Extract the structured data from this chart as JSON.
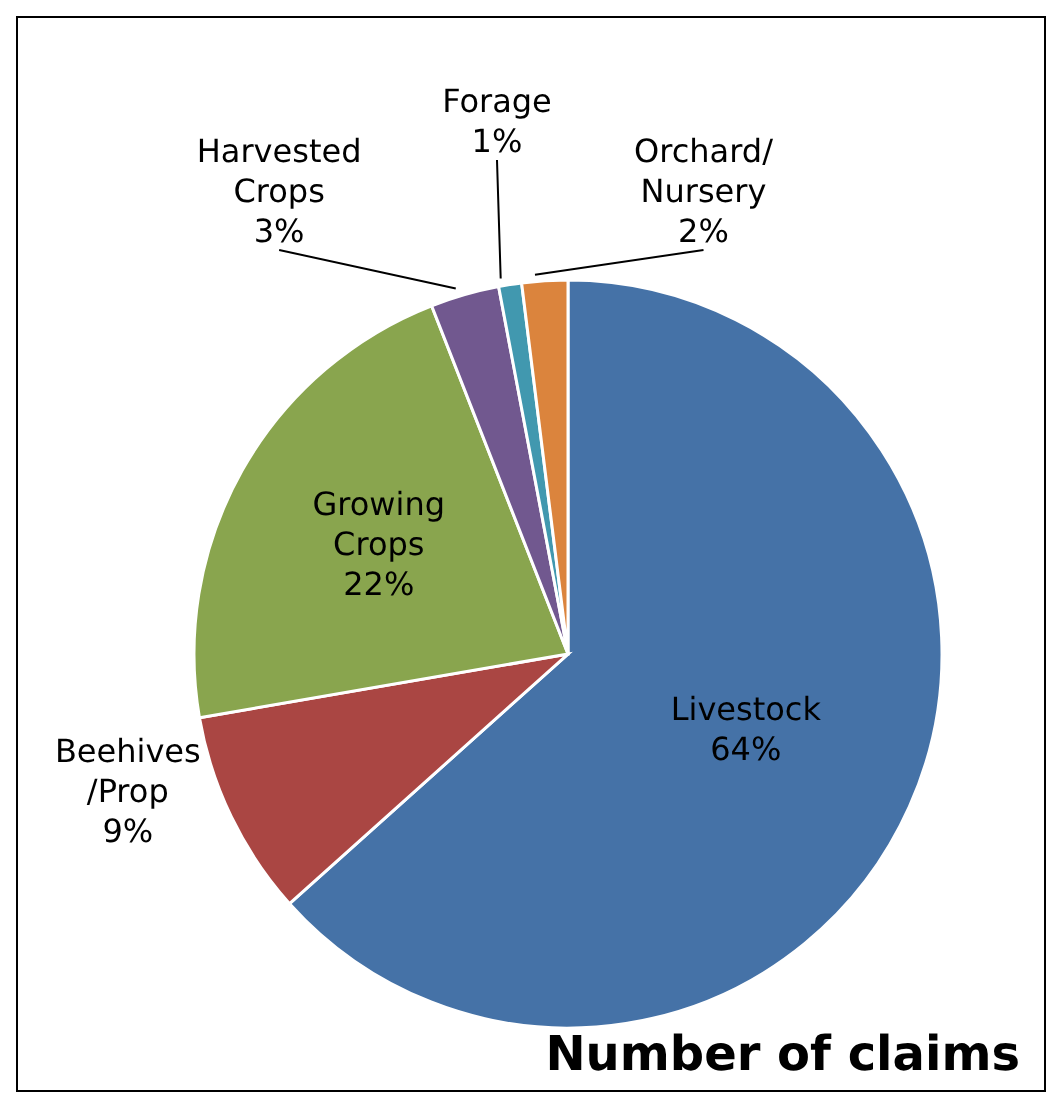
{
  "chart_data": {
    "type": "pie",
    "title": "Number of claims",
    "categories": [
      "Livestock",
      "Beehives /Prop",
      "Growing Crops",
      "Harvested Crops",
      "Forage",
      "Orchard/ Nursery"
    ],
    "values": [
      64,
      9,
      22,
      3,
      1,
      2
    ],
    "value_labels": [
      "64%",
      "9%",
      "22%",
      "3%",
      "1%",
      "2%"
    ],
    "colors": [
      "#4572a7",
      "#aa4643",
      "#89a54e",
      "#71588f",
      "#4198af",
      "#db843d"
    ]
  }
}
